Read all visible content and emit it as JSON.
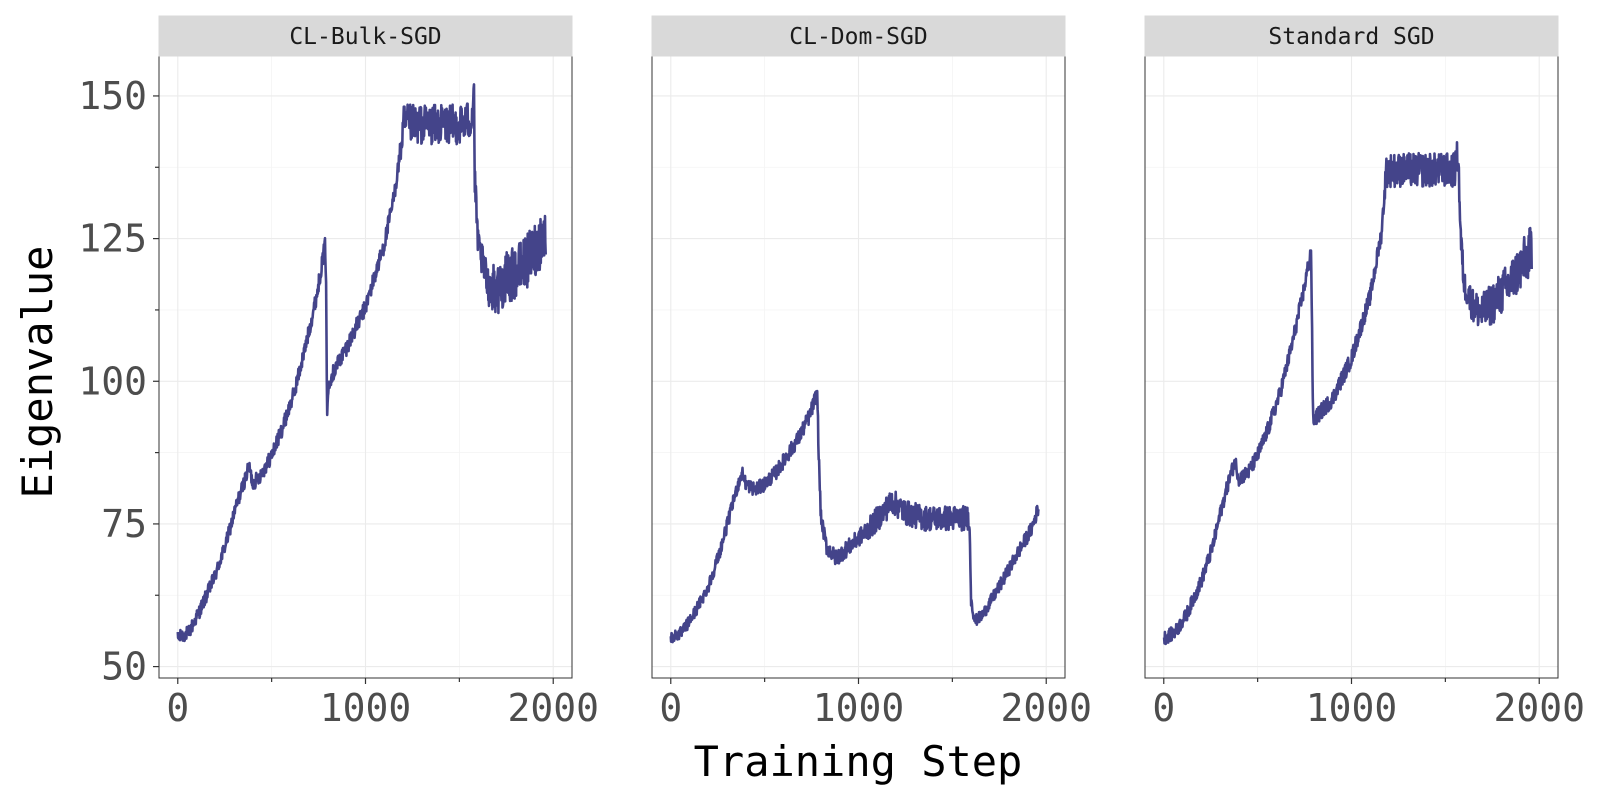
{
  "chart_data": {
    "type": "line",
    "xlabel": "Training Step",
    "ylabel": "Eigenvalue",
    "xlim": [
      -100,
      2100
    ],
    "ylim": [
      48,
      157
    ],
    "x_ticks": [
      0,
      1000,
      2000
    ],
    "y_ticks": [
      50,
      75,
      100,
      125,
      150
    ],
    "x_tick_labels": [
      "0",
      "1000",
      "2000"
    ],
    "y_tick_labels": [
      "50",
      "75",
      "100",
      "125",
      "150"
    ],
    "grid": true,
    "line_color": "#44448a",
    "panels": [
      {
        "title": "CL-Bulk-SGD",
        "noise": [
          [
            0,
            1.2
          ],
          [
            1180,
            1.5
          ],
          [
            1200,
            3.5
          ],
          [
            1580,
            3.5
          ],
          [
            1600,
            2.5
          ],
          [
            1700,
            4.5
          ],
          [
            1960,
            5
          ]
        ],
        "points": [
          [
            0,
            55
          ],
          [
            60,
            56
          ],
          [
            120,
            60
          ],
          [
            200,
            66
          ],
          [
            260,
            72
          ],
          [
            310,
            78
          ],
          [
            350,
            82
          ],
          [
            380,
            85
          ],
          [
            400,
            82
          ],
          [
            450,
            84
          ],
          [
            500,
            87
          ],
          [
            560,
            92
          ],
          [
            620,
            98
          ],
          [
            680,
            106
          ],
          [
            740,
            115
          ],
          [
            785,
            124
          ],
          [
            790,
            118
          ],
          [
            795,
            94
          ],
          [
            805,
            100
          ],
          [
            850,
            103
          ],
          [
            900,
            106
          ],
          [
            1000,
            113
          ],
          [
            1100,
            124
          ],
          [
            1150,
            132
          ],
          [
            1185,
            140
          ],
          [
            1205,
            145
          ],
          [
            1300,
            145
          ],
          [
            1400,
            145
          ],
          [
            1500,
            145
          ],
          [
            1565,
            146
          ],
          [
            1578,
            151
          ],
          [
            1582,
            135
          ],
          [
            1600,
            124
          ],
          [
            1650,
            117
          ],
          [
            1700,
            116
          ],
          [
            1750,
            118
          ],
          [
            1800,
            119
          ],
          [
            1860,
            121
          ],
          [
            1920,
            124
          ],
          [
            1960,
            126
          ]
        ]
      },
      {
        "title": "CL-Dom-SGD",
        "noise": [
          [
            0,
            1
          ],
          [
            1000,
            1.5
          ],
          [
            1100,
            2.2
          ],
          [
            1580,
            2.2
          ],
          [
            1620,
            1
          ],
          [
            1960,
            1.3
          ]
        ],
        "points": [
          [
            0,
            55
          ],
          [
            60,
            56
          ],
          [
            120,
            59
          ],
          [
            200,
            64
          ],
          [
            260,
            70
          ],
          [
            310,
            76
          ],
          [
            350,
            81
          ],
          [
            380,
            84
          ],
          [
            400,
            82
          ],
          [
            450,
            81
          ],
          [
            500,
            82
          ],
          [
            560,
            84
          ],
          [
            620,
            87
          ],
          [
            680,
            90
          ],
          [
            740,
            94
          ],
          [
            780,
            98
          ],
          [
            790,
            85
          ],
          [
            800,
            76
          ],
          [
            830,
            71
          ],
          [
            880,
            69
          ],
          [
            950,
            71
          ],
          [
            1050,
            74
          ],
          [
            1130,
            77
          ],
          [
            1180,
            79
          ],
          [
            1250,
            77
          ],
          [
            1350,
            76
          ],
          [
            1450,
            76
          ],
          [
            1550,
            76
          ],
          [
            1590,
            76
          ],
          [
            1600,
            62
          ],
          [
            1620,
            58
          ],
          [
            1660,
            59
          ],
          [
            1750,
            64
          ],
          [
            1850,
            70
          ],
          [
            1920,
            74
          ],
          [
            1960,
            78
          ]
        ]
      },
      {
        "title": "Standard SGD",
        "noise": [
          [
            0,
            1.2
          ],
          [
            1170,
            1.5
          ],
          [
            1190,
            3
          ],
          [
            1570,
            3
          ],
          [
            1600,
            2.5
          ],
          [
            1700,
            3.5
          ],
          [
            1960,
            4.5
          ]
        ],
        "points": [
          [
            0,
            55
          ],
          [
            60,
            56
          ],
          [
            120,
            59
          ],
          [
            200,
            65
          ],
          [
            260,
            71
          ],
          [
            310,
            78
          ],
          [
            350,
            83
          ],
          [
            380,
            86
          ],
          [
            400,
            83
          ],
          [
            450,
            84
          ],
          [
            500,
            87
          ],
          [
            560,
            92
          ],
          [
            620,
            98
          ],
          [
            680,
            106
          ],
          [
            740,
            115
          ],
          [
            785,
            123
          ],
          [
            795,
            93
          ],
          [
            820,
            94
          ],
          [
            900,
            97
          ],
          [
            1000,
            104
          ],
          [
            1100,
            115
          ],
          [
            1160,
            126
          ],
          [
            1185,
            137
          ],
          [
            1250,
            137
          ],
          [
            1350,
            137
          ],
          [
            1450,
            137
          ],
          [
            1550,
            137
          ],
          [
            1568,
            140
          ],
          [
            1582,
            125
          ],
          [
            1600,
            117
          ],
          [
            1650,
            113
          ],
          [
            1700,
            112
          ],
          [
            1760,
            114
          ],
          [
            1840,
            117
          ],
          [
            1900,
            120
          ],
          [
            1960,
            123
          ]
        ]
      }
    ]
  }
}
